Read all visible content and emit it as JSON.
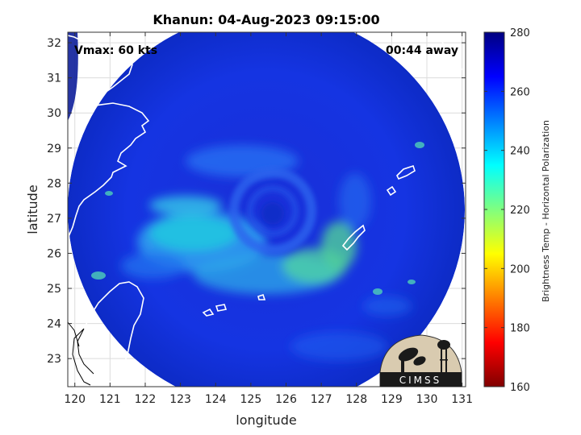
{
  "title": "Khanun: 04-Aug-2023 09:15:00",
  "vmax_label": "Vmax: 60 kts",
  "time_away": "00:44 away",
  "axes": {
    "xlabel": "longitude",
    "ylabel": "latitude",
    "xlim": [
      119.8,
      131.1
    ],
    "ylim": [
      22.2,
      32.3
    ],
    "xticks": [
      "120",
      "121",
      "122",
      "123",
      "124",
      "125",
      "126",
      "127",
      "128",
      "129",
      "130",
      "131"
    ],
    "yticks": [
      "23",
      "24",
      "25",
      "26",
      "27",
      "28",
      "29",
      "30",
      "31",
      "32"
    ],
    "grid": true
  },
  "storm_center": {
    "lon": 125.9,
    "lat": 27.05
  },
  "scan_radius_deg": 5.5,
  "colorbar": {
    "label": "Brightness Temp - Horizontal Polarization",
    "ticks": [
      "160",
      "180",
      "200",
      "220",
      "240",
      "260",
      "280"
    ],
    "range": [
      160,
      280
    ],
    "colormap": "jet"
  },
  "logo": {
    "text": "CIMSS"
  }
}
